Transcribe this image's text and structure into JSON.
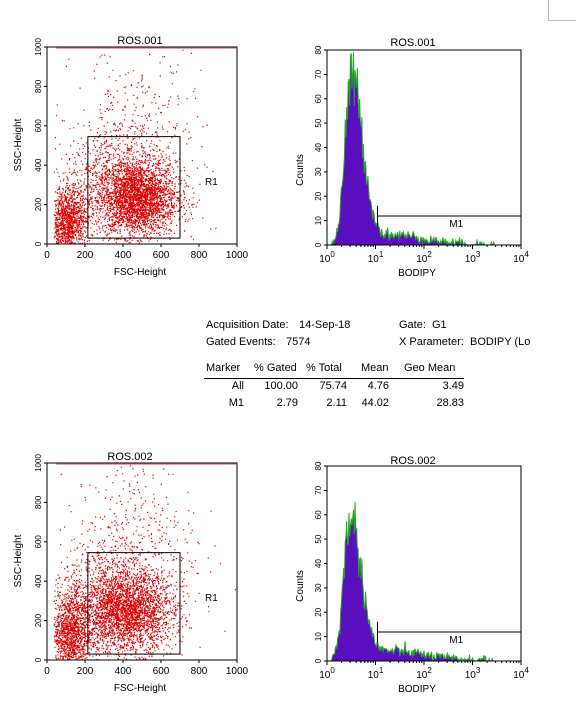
{
  "chart_data": [
    {
      "type": "scatter",
      "title": "ROS.001",
      "xlabel": "FSC-Height",
      "ylabel": "SSC-Height",
      "xlim": [
        0,
        1000
      ],
      "ylim": [
        0,
        1000
      ],
      "xticks": [
        "0",
        "200",
        "400",
        "600",
        "800",
        "1000"
      ],
      "yticks": [
        "0",
        "200",
        "400",
        "600",
        "800",
        "1000"
      ],
      "gate": {
        "name": "R1",
        "x": [
          215,
          700
        ],
        "y": [
          30,
          545
        ]
      },
      "clusters": [
        {
          "x": 470,
          "y": 230,
          "sx": 105,
          "sy": 95,
          "n": 2600
        },
        {
          "x": 380,
          "y": 320,
          "sx": 150,
          "sy": 140,
          "n": 900
        },
        {
          "x": 110,
          "y": 110,
          "sx": 50,
          "sy": 90,
          "n": 1200
        },
        {
          "x": 480,
          "y": 560,
          "sx": 170,
          "sy": 230,
          "n": 300
        }
      ],
      "point_color": "#e00000"
    },
    {
      "type": "area",
      "title": "ROS.001",
      "xlabel": "BODIPY",
      "ylabel": "Counts",
      "xscale": "log",
      "xlim": [
        1,
        10000
      ],
      "ylim": [
        0,
        80
      ],
      "xticks": [
        "10^0",
        "10^1",
        "10^2",
        "10^3",
        "10^4"
      ],
      "yticks": [
        "0",
        "10",
        "20",
        "30",
        "40",
        "50",
        "60",
        "70",
        "80"
      ],
      "peak": {
        "center": 3.2,
        "height": 68
      },
      "marker": {
        "name": "M1",
        "from": 11,
        "to": 10000
      },
      "fill_color": "#5a0fbe",
      "edge_color": "#22a822"
    },
    {
      "type": "scatter",
      "title": "ROS.002",
      "xlabel": "FSC-Height",
      "ylabel": "SSC-Height",
      "xlim": [
        0,
        1000
      ],
      "ylim": [
        0,
        1000
      ],
      "xticks": [
        "0",
        "200",
        "400",
        "600",
        "800",
        "1000"
      ],
      "yticks": [
        "0",
        "200",
        "400",
        "600",
        "800",
        "1000"
      ],
      "gate": {
        "name": "R1",
        "x": [
          215,
          700
        ],
        "y": [
          30,
          545
        ]
      },
      "clusters": [
        {
          "x": 420,
          "y": 240,
          "sx": 120,
          "sy": 100,
          "n": 2400
        },
        {
          "x": 350,
          "y": 340,
          "sx": 150,
          "sy": 150,
          "n": 900
        },
        {
          "x": 120,
          "y": 140,
          "sx": 55,
          "sy": 110,
          "n": 1300
        },
        {
          "x": 460,
          "y": 590,
          "sx": 160,
          "sy": 230,
          "n": 350
        }
      ],
      "point_color": "#e00000"
    },
    {
      "type": "area",
      "title": "ROS.002",
      "xlabel": "BODIPY",
      "ylabel": "Counts",
      "xscale": "log",
      "xlim": [
        1,
        10000
      ],
      "ylim": [
        0,
        80
      ],
      "xticks": [
        "10^0",
        "10^1",
        "10^2",
        "10^3",
        "10^4"
      ],
      "yticks": [
        "0",
        "10",
        "20",
        "30",
        "40",
        "50",
        "60",
        "70",
        "80"
      ],
      "peak": {
        "center": 3.0,
        "height": 58
      },
      "marker": {
        "name": "M1",
        "from": 11,
        "to": 10000
      },
      "fill_color": "#5a0fbe",
      "edge_color": "#22a822"
    }
  ],
  "stats": {
    "acq_label": "Acquisition Date:",
    "acq_value": "14-Sep-18",
    "gate_label": "Gate:",
    "gate_value": "G1",
    "events_label": "Gated Events:",
    "events_value": "7574",
    "xparam_label": "X Parameter:",
    "xparam_value": "BODIPY (Lo",
    "headers": [
      "Marker",
      "% Gated",
      "% Total",
      "Mean",
      "Geo Mean"
    ],
    "rows": [
      [
        "All",
        "100.00",
        "75.74",
        "4.76",
        "3.49"
      ],
      [
        "M1",
        "2.79",
        "2.11",
        "44.02",
        "28.83"
      ]
    ]
  }
}
